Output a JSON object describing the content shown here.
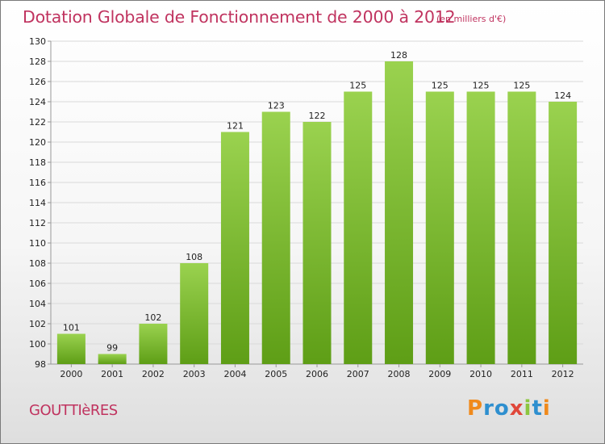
{
  "header": {
    "title": "Dotation Globale de Fonctionnement de 2000 à 2012",
    "subtitle": "(en milliers d'€)"
  },
  "footer": {
    "commune": "GOUTTIèRES",
    "brand_letters": [
      {
        "ch": "P",
        "color": "#f08a1c"
      },
      {
        "ch": "r",
        "color": "#2e8fcf"
      },
      {
        "ch": "o",
        "color": "#2e8fcf"
      },
      {
        "ch": "x",
        "color": "#e0473a"
      },
      {
        "ch": "i",
        "color": "#8cc63f"
      },
      {
        "ch": "t",
        "color": "#2e8fcf"
      },
      {
        "ch": "i",
        "color": "#f08a1c"
      }
    ]
  },
  "colors": {
    "bar_top": "#9ad24f",
    "bar_bottom": "#5e9e16",
    "grid": "#d9d9d9",
    "axis": "#999999",
    "text": "#222222",
    "title": "#c0335f"
  },
  "chart_data": {
    "type": "bar",
    "categories": [
      "2000",
      "2001",
      "2002",
      "2003",
      "2004",
      "2005",
      "2006",
      "2007",
      "2008",
      "2009",
      "2010",
      "2011",
      "2012"
    ],
    "values": [
      101,
      99,
      102,
      108,
      121,
      123,
      122,
      125,
      128,
      125,
      125,
      125,
      124
    ],
    "data_labels": [
      "101",
      "99",
      "102",
      "108",
      "121",
      "123",
      "122",
      "125",
      "128",
      "125",
      "125",
      "125",
      "124"
    ],
    "yticks": [
      "98",
      "100",
      "102",
      "104",
      "106",
      "108",
      "110",
      "112",
      "114",
      "116",
      "118",
      "120",
      "122",
      "124",
      "126",
      "128",
      "130"
    ],
    "ylim": [
      98,
      130
    ],
    "grid": true,
    "legend": "none"
  }
}
